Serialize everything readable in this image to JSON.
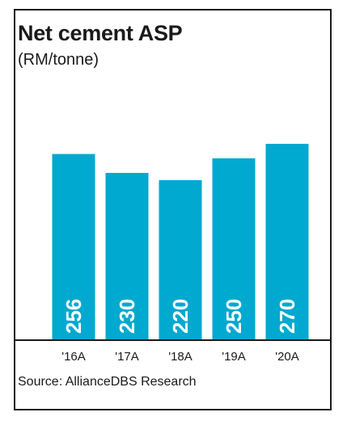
{
  "chart_data": {
    "type": "bar",
    "title": "Net cement ASP",
    "subtitle": "(RM/tonne)",
    "categories": [
      "'16A",
      "'17A",
      "'18A",
      "'19A",
      "'20A"
    ],
    "values": [
      256,
      230,
      220,
      250,
      270
    ],
    "show_value_labels": true,
    "value_label_orientation": "vertical",
    "bar_color": "#00a9cf",
    "grid": false,
    "legend": "none",
    "source": "Source: AllianceDBS Research"
  }
}
